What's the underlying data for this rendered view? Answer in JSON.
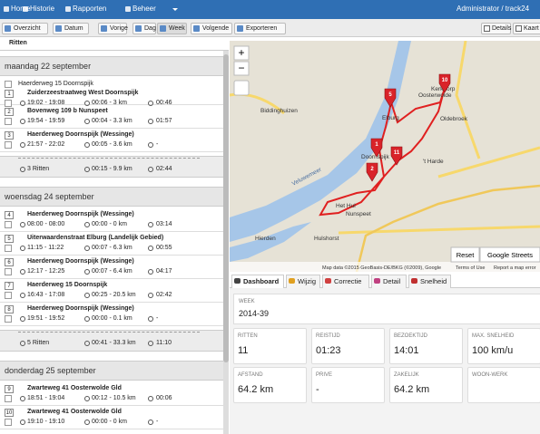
{
  "navbar": {
    "items": [
      "Home",
      "Historie",
      "Rapporten",
      "Beheer"
    ],
    "user": "Administrator / track24"
  },
  "toolbar": {
    "items": [
      "Overzicht",
      "Datum",
      "Vorige",
      "Dag",
      "Week",
      "Volgende",
      "Exporteren"
    ],
    "right": [
      "Details",
      "Kaart"
    ]
  },
  "list_title": "Ritten",
  "days": [
    {
      "label": "maandag 22 september",
      "trips": [
        {
          "number": "1",
          "start": "Haerderweg 15 Doornspijk",
          "address": "Zuiderzeestraatweg West Doornspijk",
          "time": "19:02 - 19:08",
          "duration_distance": "00:06 - 3 km",
          "stay": "00:46"
        },
        {
          "number": "2",
          "address": "Bovenweg 109 b Nunspeet",
          "time": "19:54 - 19:59",
          "duration_distance": "00:04 - 3.3 km",
          "stay": "01:57"
        },
        {
          "number": "3",
          "address": "Haerderweg Doornspijk (Wessinge)",
          "time": "21:57 - 22:02",
          "duration_distance": "00:05 - 3.6 km",
          "stay": "-"
        }
      ],
      "summary": {
        "count": "3 Ritten",
        "duration_distance": "00:15 - 9.9 km",
        "stay": "02:44"
      }
    },
    {
      "label": "woensdag 24 september",
      "trips": [
        {
          "number": "4",
          "address": "Haerderweg Doornspijk (Wessinge)",
          "time": "08:00 - 08:00",
          "duration_distance": "00:00 - 0 km",
          "stay": "03:14"
        },
        {
          "number": "5",
          "address": "Uiterwaardenstraat Elburg (Landelijk Gebied)",
          "time": "11:15 - 11:22",
          "duration_distance": "00:07 - 6.3 km",
          "stay": "00:55"
        },
        {
          "number": "6",
          "address": "Haerderweg Doornspijk (Wessinge)",
          "time": "12:17 - 12:25",
          "duration_distance": "00:07 - 6.4 km",
          "stay": "04:17"
        },
        {
          "number": "7",
          "address": "Haerderweg 15 Doornspijk",
          "time": "16:43 - 17:08",
          "duration_distance": "00:25 - 20.5 km",
          "stay": "02:42"
        },
        {
          "number": "8",
          "address": "Haerderweg Doornspijk (Wessinge)",
          "time": "19:51 - 19:52",
          "duration_distance": "00:00 - 0.1 km",
          "stay": "-"
        }
      ],
      "summary": {
        "count": "5 Ritten",
        "duration_distance": "00:41 - 33.3 km",
        "stay": "11:10"
      }
    },
    {
      "label": "donderdag 25 september",
      "trips": [
        {
          "number": "9",
          "address": "Zwarteweg 41 Oosterwolde Gld",
          "time": "18:51 - 19:04",
          "duration_distance": "00:12 - 10.5 km",
          "stay": "00:06"
        },
        {
          "number": "10",
          "address": "Zwarteweg 41 Oosterwolde Gld",
          "time": "19:10 - 19:10",
          "duration_distance": "00:00 - 0 km",
          "stay": "-"
        }
      ]
    }
  ],
  "map": {
    "labels": [
      "Biddinghuizen",
      "Kerkdorp",
      "Oosterwolde",
      "Elburg",
      "Oldebroek",
      "Veluwemeer",
      "Doornspijk",
      "'t Harde",
      "Het Hul",
      "Nunspeet",
      "Hierden",
      "Hulshorst"
    ],
    "markers": [
      "10",
      "5",
      "1",
      "11",
      "2"
    ],
    "buttons": [
      "Reset",
      "Google Streets"
    ],
    "attribution": "Map data ©2015 GeoBasis-DE/BKG (©2009), Google",
    "links": [
      "Terms of Use",
      "Report a map error"
    ]
  },
  "tabs": [
    "Dashboard",
    "Wijzig",
    "Correctie",
    "Detail",
    "Snelheid"
  ],
  "dashboard": {
    "week": {
      "label": "WEEK",
      "value": "2014-39"
    },
    "cards": [
      {
        "label": "RITTEN",
        "value": "11"
      },
      {
        "label": "REISTIJD",
        "value": "01:23"
      },
      {
        "label": "BEZOEKTIJD",
        "value": "14:01"
      },
      {
        "label": "MAX. SNELHEID",
        "value": "100 km/u"
      },
      {
        "label": "AFSTAND",
        "value": "64.2 km"
      },
      {
        "label": "PRIVE",
        "value": "-"
      },
      {
        "label": "ZAKELIJK",
        "value": "64.2 km"
      },
      {
        "label": "WOON-WERK"
      }
    ]
  }
}
